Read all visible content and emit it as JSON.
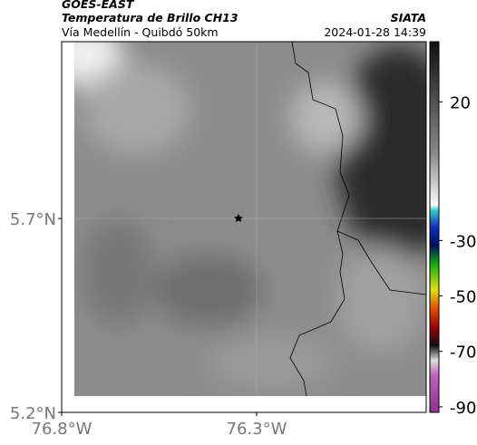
{
  "header": {
    "source": "GOES-EAST",
    "title": "Temperatura de Brillo CH13",
    "organization": "SIATA",
    "subtitle": "Vía Medellín - Quibdó 50km",
    "datetime": "2024-01-28 14:39"
  },
  "map": {
    "xlim": [
      -76.8,
      -75.865
    ],
    "ylim": [
      5.2,
      6.156
    ],
    "xticks": [
      {
        "value": -76.8,
        "label": "76.8°W"
      },
      {
        "value": -76.3,
        "label": "76.3°W"
      }
    ],
    "yticks": [
      {
        "value": 5.2,
        "label": "5.2°N"
      },
      {
        "value": 5.7,
        "label": "5.7°N"
      }
    ],
    "colorbar": {
      "lim": [
        -92,
        41.7
      ],
      "ticks": [
        20,
        -30,
        -50,
        -70,
        -90
      ]
    }
  }
}
